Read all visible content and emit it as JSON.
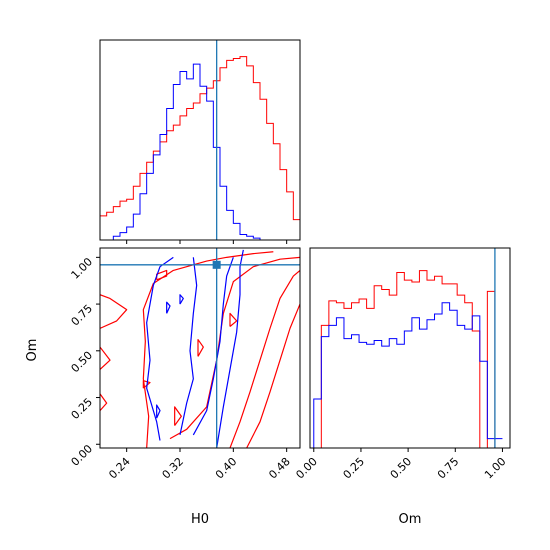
{
  "colors": {
    "series_a": "#ff0000",
    "series_b": "#0000ff",
    "truth": "#1f77b4",
    "frame": "#000000",
    "background": "#ffffff"
  },
  "chart_data": [
    {
      "type": "histogram",
      "panel": "H0 marginal",
      "xlim": [
        0.2,
        0.5
      ],
      "bin_edges": [
        0.2,
        0.21,
        0.22,
        0.23,
        0.24,
        0.25,
        0.26,
        0.27,
        0.28,
        0.29,
        0.3,
        0.31,
        0.32,
        0.33,
        0.34,
        0.35,
        0.36,
        0.37,
        0.38,
        0.39,
        0.4,
        0.41,
        0.42,
        0.43,
        0.44,
        0.45,
        0.46,
        0.47,
        0.48,
        0.49,
        0.5
      ],
      "series": [
        {
          "color": "red",
          "counts": [
            0.13,
            0.15,
            0.18,
            0.21,
            0.22,
            0.29,
            0.36,
            0.42,
            0.48,
            0.53,
            0.59,
            0.62,
            0.67,
            0.71,
            0.74,
            0.79,
            0.82,
            0.86,
            0.93,
            0.97,
            0.98,
            0.99,
            0.94,
            0.85,
            0.76,
            0.63,
            0.52,
            0.38,
            0.26,
            0.11
          ]
        },
        {
          "color": "blue",
          "counts": [
            0.0,
            0.0,
            0.02,
            0.04,
            0.07,
            0.14,
            0.25,
            0.36,
            0.46,
            0.57,
            0.71,
            0.84,
            0.91,
            0.87,
            0.95,
            0.83,
            0.75,
            0.5,
            0.29,
            0.16,
            0.09,
            0.03,
            0.02,
            0.01,
            0.0,
            0.0,
            0.0,
            0.0,
            0.0,
            0.0
          ]
        }
      ],
      "truth": 0.375
    },
    {
      "type": "contour",
      "panel": "H0 vs Om joint",
      "xlabel": "H0",
      "ylabel": "Om",
      "xlim": [
        0.2,
        0.5
      ],
      "ylim": [
        -0.02,
        1.05
      ],
      "x_ticks": [
        "0.24",
        "0.32",
        "0.40",
        "0.48"
      ],
      "y_ticks": [
        "0.00",
        "0.25",
        "0.50",
        "0.75",
        "1.00"
      ],
      "truth": {
        "x": 0.375,
        "y": 0.96
      },
      "series": [
        {
          "color": "red",
          "contours": [
            [
              [
                0.27,
                -0.02
              ],
              [
                0.273,
                0.15
              ],
              [
                0.265,
                0.35
              ],
              [
                0.268,
                0.55
              ],
              [
                0.265,
                0.72
              ],
              [
                0.28,
                0.86
              ],
              [
                0.31,
                0.93
              ],
              [
                0.36,
                0.98
              ],
              [
                0.39,
                1.0
              ],
              [
                0.43,
                1.02
              ],
              [
                0.46,
                1.03
              ]
            ],
            [
              [
                0.305,
                0.03
              ],
              [
                0.33,
                0.08
              ],
              [
                0.36,
                0.2
              ],
              [
                0.375,
                0.45
              ],
              [
                0.385,
                0.7
              ],
              [
                0.4,
                0.87
              ],
              [
                0.43,
                0.95
              ],
              [
                0.47,
                0.99
              ],
              [
                0.5,
                1.0
              ]
            ],
            [
              [
                0.395,
                -0.02
              ],
              [
                0.41,
                0.12
              ],
              [
                0.425,
                0.28
              ],
              [
                0.44,
                0.45
              ],
              [
                0.455,
                0.62
              ],
              [
                0.47,
                0.78
              ],
              [
                0.49,
                0.9
              ],
              [
                0.5,
                0.93
              ]
            ],
            [
              [
                0.42,
                -0.02
              ],
              [
                0.44,
                0.12
              ],
              [
                0.455,
                0.28
              ],
              [
                0.47,
                0.45
              ],
              [
                0.485,
                0.62
              ],
              [
                0.5,
                0.75
              ]
            ],
            [
              [
                0.2,
                0.62
              ],
              [
                0.225,
                0.66
              ],
              [
                0.24,
                0.72
              ],
              [
                0.215,
                0.78
              ],
              [
                0.2,
                0.8
              ]
            ],
            [
              [
                0.2,
                0.4
              ],
              [
                0.215,
                0.45
              ],
              [
                0.2,
                0.52
              ]
            ],
            [
              [
                0.2,
                0.18
              ],
              [
                0.21,
                0.22
              ],
              [
                0.2,
                0.27
              ]
            ],
            [
              [
                0.285,
                0.88
              ],
              [
                0.3,
                0.9
              ],
              [
                0.3,
                0.93
              ],
              [
                0.285,
                0.91
              ],
              [
                0.285,
                0.88
              ]
            ],
            [
              [
                0.265,
                0.3
              ],
              [
                0.275,
                0.33
              ],
              [
                0.265,
                0.34
              ],
              [
                0.265,
                0.3
              ]
            ],
            [
              [
                0.312,
                0.1
              ],
              [
                0.322,
                0.15
              ],
              [
                0.312,
                0.2
              ],
              [
                0.312,
                0.1
              ]
            ],
            [
              [
                0.347,
                0.47
              ],
              [
                0.355,
                0.52
              ],
              [
                0.347,
                0.56
              ],
              [
                0.347,
                0.47
              ]
            ],
            [
              [
                0.395,
                0.63
              ],
              [
                0.405,
                0.66
              ],
              [
                0.395,
                0.7
              ],
              [
                0.395,
                0.63
              ]
            ]
          ]
        },
        {
          "color": "blue",
          "contours": [
            [
              [
                0.29,
                0.02
              ],
              [
                0.285,
                0.12
              ],
              [
                0.27,
                0.3
              ],
              [
                0.275,
                0.45
              ],
              [
                0.27,
                0.65
              ],
              [
                0.28,
                0.85
              ],
              [
                0.29,
                0.95
              ],
              [
                0.31,
                1.0
              ]
            ],
            [
              [
                0.32,
                0.05
              ],
              [
                0.33,
                0.22
              ],
              [
                0.34,
                0.35
              ],
              [
                0.335,
                0.5
              ],
              [
                0.34,
                0.7
              ],
              [
                0.345,
                0.85
              ],
              [
                0.34,
                1.0
              ]
            ],
            [
              [
                0.34,
                0.05
              ],
              [
                0.36,
                0.18
              ],
              [
                0.37,
                0.35
              ],
              [
                0.38,
                0.55
              ],
              [
                0.385,
                0.75
              ],
              [
                0.39,
                0.9
              ],
              [
                0.4,
                1.0
              ]
            ],
            [
              [
                0.375,
                -0.02
              ],
              [
                0.385,
                0.2
              ],
              [
                0.395,
                0.4
              ],
              [
                0.405,
                0.6
              ],
              [
                0.41,
                0.8
              ],
              [
                0.41,
                0.95
              ],
              [
                0.415,
                1.04
              ]
            ],
            [
              [
                0.3,
                0.7
              ],
              [
                0.305,
                0.74
              ],
              [
                0.3,
                0.76
              ],
              [
                0.3,
                0.7
              ]
            ],
            [
              [
                0.32,
                0.75
              ],
              [
                0.325,
                0.78
              ],
              [
                0.32,
                0.8
              ],
              [
                0.32,
                0.75
              ]
            ],
            [
              [
                0.285,
                0.14
              ],
              [
                0.29,
                0.18
              ],
              [
                0.285,
                0.21
              ],
              [
                0.285,
                0.14
              ]
            ]
          ]
        }
      ]
    },
    {
      "type": "histogram",
      "panel": "Om marginal",
      "xlabel": "Om",
      "xlim": [
        -0.02,
        1.04
      ],
      "x_ticks": [
        "0.00",
        "0.25",
        "0.50",
        "0.75",
        "1.00"
      ],
      "bin_edges": [
        0.0,
        0.04,
        0.08,
        0.12,
        0.16,
        0.2,
        0.24,
        0.28,
        0.32,
        0.36,
        0.4,
        0.44,
        0.48,
        0.52,
        0.56,
        0.6,
        0.64,
        0.68,
        0.72,
        0.76,
        0.8,
        0.84,
        0.88,
        0.92,
        0.96,
        1.0
      ],
      "series": [
        {
          "color": "red",
          "counts": [
            0.0,
            0.65,
            0.78,
            0.77,
            0.74,
            0.77,
            0.79,
            0.74,
            0.86,
            0.84,
            0.81,
            0.93,
            0.89,
            0.88,
            0.94,
            0.89,
            0.91,
            0.87,
            0.87,
            0.81,
            0.77,
            0.62,
            0.0,
            0.83,
            0.0
          ]
        },
        {
          "color": "blue",
          "counts": [
            0.26,
            0.59,
            0.65,
            0.69,
            0.58,
            0.6,
            0.56,
            0.55,
            0.57,
            0.54,
            0.58,
            0.55,
            0.62,
            0.69,
            0.63,
            0.68,
            0.71,
            0.77,
            0.73,
            0.65,
            0.63,
            0.7,
            0.46,
            0.05,
            0.05
          ]
        }
      ],
      "truth": 0.96
    }
  ]
}
